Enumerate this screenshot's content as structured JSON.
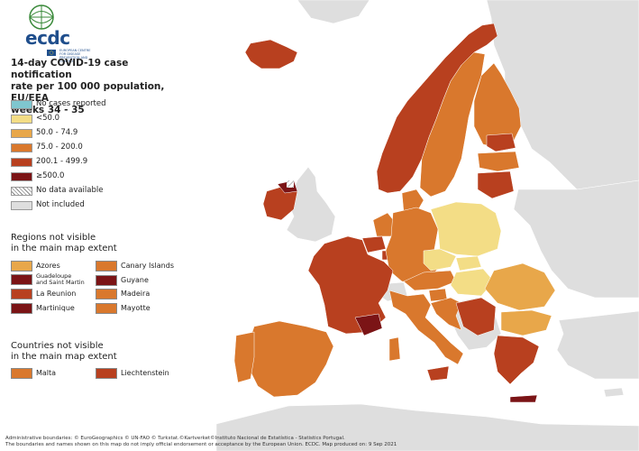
{
  "logo": {
    "name": "ecdc",
    "subtitle": "EUROPEAN CENTRE FOR DISEASE PREVENTION AND CONTROL"
  },
  "title": {
    "line1": "14-day COVID-19 case notification",
    "line2": "rate per 100 000 population, EU/EEA",
    "line3": "weeks 34 - 35"
  },
  "legend": [
    {
      "label": "No cases reported",
      "color": "#7fc6cf"
    },
    {
      "label": "<50.0",
      "color": "#f3dd86"
    },
    {
      "label": "50.0 - 74.9",
      "color": "#e8a74a"
    },
    {
      "label": "75.0 - 200.0",
      "color": "#d9782d"
    },
    {
      "label": "200.1 - 499.9",
      "color": "#b8401f"
    },
    {
      "label": "≥500.0",
      "color": "#7b1416"
    },
    {
      "label": "No data available",
      "color": "hatched"
    },
    {
      "label": "Not included",
      "color": "#dedede"
    }
  ],
  "regions_section": {
    "title_line1": "Regions not visible",
    "title_line2": "in the main map extent",
    "items": [
      {
        "label": "Azores",
        "color": "#e8a74a"
      },
      {
        "label": "Canary Islands",
        "color": "#d9782d"
      },
      {
        "label": "Guadeloupe and Saint Martin",
        "label_line1": "Guadeloupe",
        "label_line2": "and Saint Martin",
        "color": "#7b1416"
      },
      {
        "label": "Guyane",
        "color": "#7b1416"
      },
      {
        "label": "La Reunion",
        "color": "#b8401f"
      },
      {
        "label": "Madeira",
        "color": "#d9782d"
      },
      {
        "label": "Martinique",
        "color": "#7b1416"
      },
      {
        "label": "Mayotte",
        "color": "#d9782d"
      }
    ]
  },
  "countries_section": {
    "title_line1": "Countries not visible",
    "title_line2": "in the main map extent",
    "items": [
      {
        "label": "Malta",
        "color": "#d9782d"
      },
      {
        "label": "Liechtenstein",
        "color": "#b8401f"
      }
    ]
  },
  "footer": {
    "line1": "Administrative boundaries: © EuroGeographics © UN-FAO © Turkstat.©Kartverket©Instituto Nacional de Estatística - Statistics Portugal.",
    "line2": "The boundaries and names shown on this map do not imply official endorsement or acceptance by the European Union. ECDC. Map produced on: 9 Sep 2021"
  },
  "colors": {
    "sea": "#ffffff",
    "not_included": "#dedede",
    "border": "#ffffff",
    "outline": "#8a5a3a"
  }
}
